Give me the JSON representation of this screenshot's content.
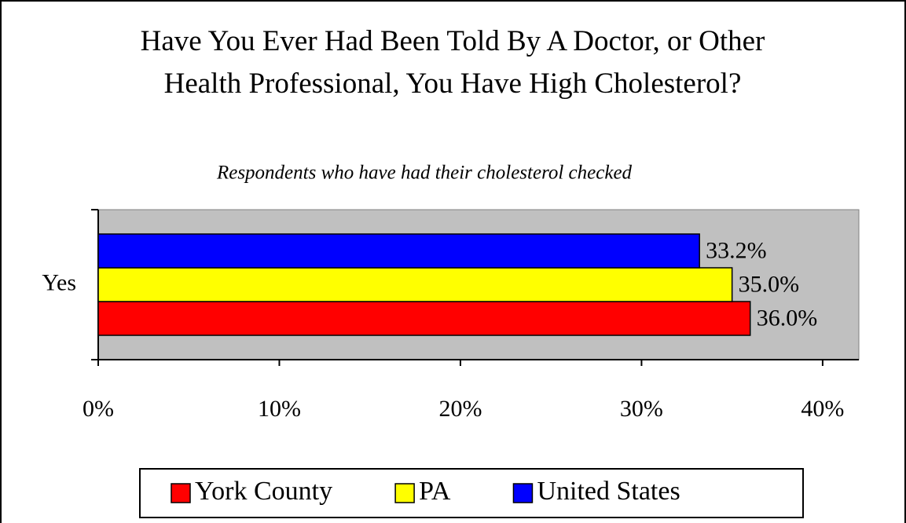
{
  "chart_data": {
    "type": "hbar",
    "title": "Have You Ever Had Been Told By A Doctor, or Other Health Professional, You Have High Cholesterol?",
    "subtitle": "Respondents who have had their cholesterol checked",
    "categories": [
      "Yes"
    ],
    "series": [
      {
        "name": "York County",
        "color": "#ff0000",
        "values": [
          36.0
        ],
        "value_labels": [
          "36.0%"
        ]
      },
      {
        "name": "PA",
        "color": "#ffff00",
        "values": [
          35.0
        ],
        "value_labels": [
          "35.0%"
        ]
      },
      {
        "name": "United States",
        "color": "#0000ff",
        "values": [
          33.2
        ],
        "value_labels": [
          "33.2%"
        ]
      }
    ],
    "xlim": [
      0,
      42
    ],
    "xticks": [
      {
        "value": 0,
        "label": "0%"
      },
      {
        "value": 10,
        "label": "10%"
      },
      {
        "value": 20,
        "label": "20%"
      },
      {
        "value": 30,
        "label": "30%"
      },
      {
        "value": 40,
        "label": "40%"
      }
    ],
    "plot_background": "#c0c0c0",
    "legend": "bottom"
  }
}
